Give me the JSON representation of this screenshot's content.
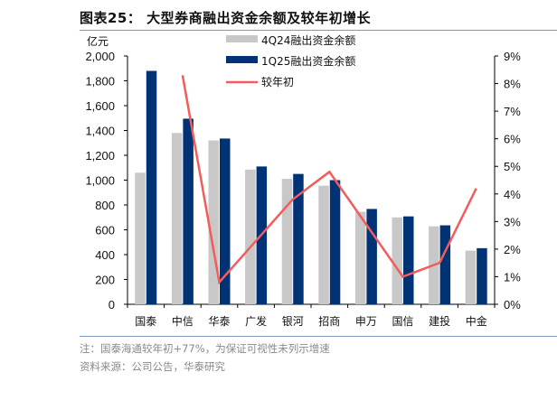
{
  "header": {
    "title": "图表25：  大型券商融出资金余额及较年初增长"
  },
  "footer": {
    "note": "注：国泰海通较年初+77%，为保证可视性未列示增速",
    "source": "资料来源：公司公告，华泰研究"
  },
  "chart_data": {
    "type": "bar",
    "title": "",
    "categories": [
      "国泰",
      "中信",
      "华泰",
      "广发",
      "银河",
      "招商",
      "申万",
      "国信",
      "建投",
      "中金"
    ],
    "series": [
      {
        "name": "4Q24融出资金余额",
        "type": "bar",
        "axis": "left",
        "color": "#c8c8c8",
        "values": [
          1060,
          1380,
          1320,
          1085,
          1010,
          955,
          745,
          700,
          628,
          432
        ]
      },
      {
        "name": "1Q25融出资金余额",
        "type": "bar",
        "axis": "left",
        "color": "#003376",
        "values": [
          1880,
          1495,
          1335,
          1110,
          1050,
          1000,
          768,
          708,
          636,
          452
        ]
      },
      {
        "name": "较年初",
        "type": "line",
        "axis": "right",
        "color": "#f25c5c",
        "unit": "%",
        "values": [
          null,
          8.3,
          0.8,
          2.3,
          3.8,
          4.8,
          2.9,
          1.0,
          1.5,
          4.2
        ]
      }
    ],
    "left_axis": {
      "label": "亿元",
      "range": [
        0,
        2000
      ],
      "ticks": [
        "0",
        "200",
        "400",
        "600",
        "800",
        "1,000",
        "1,200",
        "1,400",
        "1,600",
        "1,800",
        "2,000"
      ]
    },
    "right_axis": {
      "label": "",
      "range": [
        0,
        9
      ],
      "ticks": [
        "0%",
        "1%",
        "2%",
        "3%",
        "4%",
        "5%",
        "6%",
        "7%",
        "8%",
        "9%"
      ]
    },
    "grid": false,
    "legend": "top-center"
  }
}
